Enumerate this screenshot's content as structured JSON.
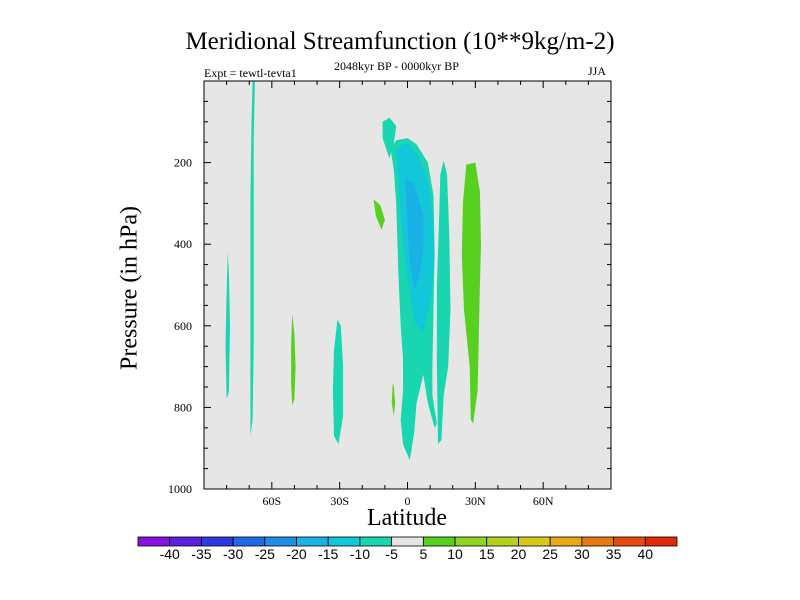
{
  "chart_data": {
    "type": "contour",
    "title": "Meridional Streamfunction (10**9kg/m-2)",
    "subtitle": "2048kyr BP - 0000kyr BP",
    "left_label": "Expt = tewtl-tevta1",
    "right_label": "JJA",
    "xlabel": "Latitude",
    "ylabel": "Pressure (in hPa)",
    "xlim": [
      -90,
      90
    ],
    "ylim": [
      0,
      1000
    ],
    "y_inverted": true,
    "x_ticks": [
      {
        "value": -60,
        "label": "60S"
      },
      {
        "value": -30,
        "label": "30S"
      },
      {
        "value": 0,
        "label": "0"
      },
      {
        "value": 30,
        "label": "30N"
      },
      {
        "value": 60,
        "label": "60N"
      }
    ],
    "y_ticks": [
      {
        "value": 200,
        "label": "200"
      },
      {
        "value": 400,
        "label": "400"
      },
      {
        "value": 600,
        "label": "600"
      },
      {
        "value": 800,
        "label": "800"
      },
      {
        "value": 1000,
        "label": "1000"
      }
    ],
    "background_color": "#e6e6e6",
    "contour_levels": [
      -40,
      -35,
      -30,
      -25,
      -20,
      -15,
      -10,
      -5,
      5,
      10,
      15,
      20,
      25,
      30,
      35,
      40
    ],
    "colorbar_colors": [
      "#8a10df",
      "#5c1fe0",
      "#2f3ae0",
      "#1f6ae6",
      "#1e8fe8",
      "#1ab1e6",
      "#12c8d8",
      "#1ad6b0",
      "#e6e6e6",
      "#58d020",
      "#8cd41e",
      "#b4d21c",
      "#d8c81a",
      "#e6a816",
      "#e67a12",
      "#e64a0e",
      "#e02a0a"
    ],
    "regions": [
      {
        "level": "-10 to -5",
        "color": "#1ad6b0",
        "points": [
          [
            -68.5,
            0
          ],
          [
            -69,
            100
          ],
          [
            -69.5,
            300
          ],
          [
            -69.5,
            500
          ],
          [
            -69.5,
            700
          ],
          [
            -69.5,
            870
          ],
          [
            -68.5,
            830
          ],
          [
            -68,
            650
          ],
          [
            -68,
            400
          ],
          [
            -68,
            150
          ],
          [
            -67.5,
            0
          ]
        ]
      },
      {
        "level": "-10 to -5",
        "color": "#1ad6b0",
        "points": [
          [
            -79.5,
            420
          ],
          [
            -80,
            520
          ],
          [
            -80.5,
            650
          ],
          [
            -80,
            780
          ],
          [
            -79,
            760
          ],
          [
            -78.5,
            600
          ],
          [
            -79,
            470
          ]
        ]
      },
      {
        "level": "-10 to -5",
        "color": "#1ad6b0",
        "points": [
          [
            -31,
            585
          ],
          [
            -32.5,
            660
          ],
          [
            -33,
            760
          ],
          [
            -32.5,
            870
          ],
          [
            -30.5,
            890
          ],
          [
            -28.5,
            820
          ],
          [
            -28.5,
            700
          ],
          [
            -29.5,
            600
          ]
        ]
      },
      {
        "level": "-10 to -5",
        "color": "#1ad6b0",
        "points": [
          [
            -11,
            100
          ],
          [
            -11,
            140
          ],
          [
            -8,
            190
          ],
          [
            -6,
            150
          ],
          [
            -5,
            110
          ],
          [
            -8,
            90
          ]
        ]
      },
      {
        "level": "-10 to -5",
        "color": "#1ad6b0",
        "points": [
          [
            -7.5,
            165
          ],
          [
            -5,
            145
          ],
          [
            0,
            140
          ],
          [
            4,
            155
          ],
          [
            9,
            200
          ],
          [
            11.5,
            280
          ],
          [
            12,
            420
          ],
          [
            11.5,
            560
          ],
          [
            11,
            700
          ],
          [
            11,
            770
          ],
          [
            13,
            840
          ],
          [
            12,
            850
          ],
          [
            9,
            790
          ],
          [
            7,
            720
          ],
          [
            4,
            790
          ],
          [
            3,
            860
          ],
          [
            1,
            930
          ],
          [
            -2,
            890
          ],
          [
            -3,
            830
          ],
          [
            -2,
            760
          ],
          [
            -2,
            680
          ],
          [
            -3,
            600
          ],
          [
            -4,
            480
          ],
          [
            -5,
            300
          ],
          [
            -6,
            220
          ]
        ]
      },
      {
        "level": "-10 to -5",
        "color": "#1ad6b0",
        "points": [
          [
            16,
            195
          ],
          [
            17.5,
            230
          ],
          [
            18.5,
            380
          ],
          [
            19,
            560
          ],
          [
            18,
            700
          ],
          [
            16,
            770
          ],
          [
            15,
            880
          ],
          [
            13.5,
            890
          ],
          [
            13,
            700
          ],
          [
            13,
            500
          ],
          [
            14,
            330
          ],
          [
            14.5,
            230
          ]
        ]
      },
      {
        "level": "-15 to -10",
        "color": "#12c8d8",
        "points": [
          [
            -5,
            165
          ],
          [
            0,
            150
          ],
          [
            5,
            185
          ],
          [
            9,
            240
          ],
          [
            11,
            320
          ],
          [
            12,
            420
          ],
          [
            10.5,
            530
          ],
          [
            7,
            620
          ],
          [
            3,
            590
          ],
          [
            1,
            520
          ],
          [
            -1,
            440
          ],
          [
            -3,
            340
          ],
          [
            -4,
            250
          ]
        ]
      },
      {
        "level": "-20 to -15",
        "color": "#1ab1e6",
        "points": [
          [
            -1,
            240
          ],
          [
            3,
            250
          ],
          [
            5,
            290
          ],
          [
            7,
            330
          ],
          [
            7,
            420
          ],
          [
            5,
            480
          ],
          [
            3,
            510
          ],
          [
            1,
            440
          ],
          [
            0,
            360
          ],
          [
            -0.5,
            300
          ]
        ]
      },
      {
        "level": "5 to 10",
        "color": "#58d020",
        "points": [
          [
            26,
            205
          ],
          [
            30,
            200
          ],
          [
            32,
            270
          ],
          [
            32.5,
            400
          ],
          [
            32,
            500
          ],
          [
            31.5,
            640
          ],
          [
            31,
            760
          ],
          [
            29,
            840
          ],
          [
            28,
            830
          ],
          [
            27.5,
            700
          ],
          [
            25,
            560
          ],
          [
            24,
            430
          ],
          [
            24.5,
            300
          ]
        ]
      },
      {
        "level": "5 to 10",
        "color": "#58d020",
        "points": [
          [
            -51,
            570
          ],
          [
            -51.5,
            650
          ],
          [
            -51.5,
            740
          ],
          [
            -51,
            795
          ],
          [
            -50,
            780
          ],
          [
            -49.5,
            700
          ],
          [
            -50,
            620
          ]
        ]
      },
      {
        "level": "5 to 10",
        "color": "#58d020",
        "points": [
          [
            -15,
            290
          ],
          [
            -14,
            330
          ],
          [
            -11.5,
            365
          ],
          [
            -10,
            340
          ],
          [
            -12,
            305
          ]
        ]
      },
      {
        "level": "5 to 10",
        "color": "#58d020",
        "points": [
          [
            -6.5,
            740
          ],
          [
            -7,
            790
          ],
          [
            -6,
            820
          ],
          [
            -5.5,
            790
          ],
          [
            -6,
            750
          ]
        ]
      }
    ]
  }
}
